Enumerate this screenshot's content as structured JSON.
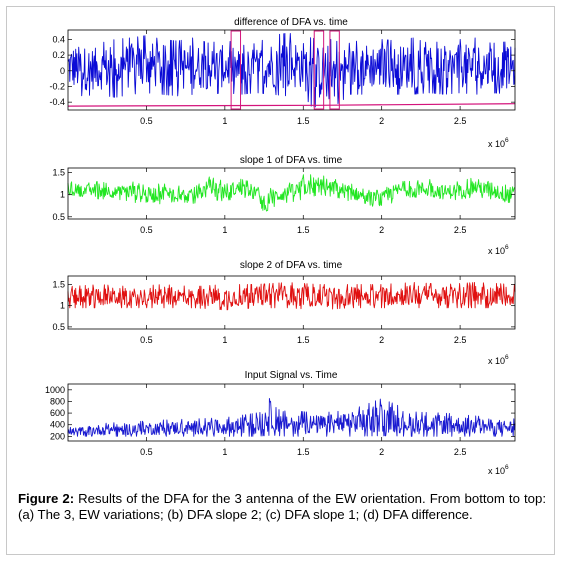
{
  "caption": {
    "label": "Figure 2:",
    "text": " Results of the DFA for the 3 antenna of the EW orientation. From bottom to top: (a) The 3, EW variations; (b) DFA slope 2; (c) DFA slope 1; (d) DFA difference."
  },
  "chart_data": [
    {
      "type": "line",
      "title": "difference of DFA vs. time",
      "xlim": [
        0,
        2.85
      ],
      "x_ticks": [
        0.5,
        1,
        1.5,
        2,
        2.5
      ],
      "x_tick_labels": [
        "0.5",
        "1",
        "1.5",
        "2",
        "2.5"
      ],
      "x_scale_label": "x 10",
      "x_scale_exp": "6",
      "ylim": [
        -0.5,
        0.52
      ],
      "y_ticks": [
        0.4,
        0.2,
        0,
        -0.2,
        -0.4
      ],
      "y_tick_labels": [
        "0.4",
        "0.2",
        "0",
        "-0.2",
        "-0.4"
      ],
      "series": [
        {
          "color": "#0b0bd6",
          "envelope": [
            [
              0,
              -0.3,
              0.4
            ],
            [
              0.1,
              -0.32,
              0.38
            ],
            [
              0.2,
              -0.3,
              0.35
            ],
            [
              0.3,
              -0.34,
              0.4
            ],
            [
              0.4,
              -0.3,
              0.42
            ],
            [
              0.5,
              -0.28,
              0.45
            ],
            [
              0.6,
              -0.3,
              0.4
            ],
            [
              0.7,
              -0.32,
              0.38
            ],
            [
              0.8,
              -0.3,
              0.42
            ],
            [
              0.9,
              -0.3,
              0.35
            ],
            [
              1.0,
              -0.28,
              0.4
            ],
            [
              1.1,
              -0.3,
              0.32
            ],
            [
              1.2,
              -0.28,
              0.35
            ],
            [
              1.3,
              -0.3,
              0.45
            ],
            [
              1.4,
              -0.32,
              0.48
            ],
            [
              1.5,
              -0.3,
              0.45
            ],
            [
              1.55,
              -0.45,
              0.42
            ],
            [
              1.6,
              -0.47,
              0.4
            ],
            [
              1.65,
              -0.32,
              0.42
            ],
            [
              1.7,
              -0.45,
              0.38
            ],
            [
              1.8,
              -0.3,
              0.35
            ],
            [
              1.9,
              -0.3,
              0.42
            ],
            [
              2.0,
              -0.28,
              0.4
            ],
            [
              2.1,
              -0.3,
              0.38
            ],
            [
              2.2,
              -0.3,
              0.42
            ],
            [
              2.3,
              -0.28,
              0.35
            ],
            [
              2.4,
              -0.3,
              0.38
            ],
            [
              2.5,
              -0.28,
              0.4
            ],
            [
              2.6,
              -0.3,
              0.42
            ],
            [
              2.7,
              -0.28,
              0.35
            ],
            [
              2.85,
              -0.3,
              0.38
            ]
          ]
        },
        {
          "color": "#d4147c",
          "points": [
            [
              0,
              -0.45
            ],
            [
              1.6,
              -0.44
            ],
            [
              2.85,
              -0.42
            ]
          ]
        }
      ],
      "markers": [
        {
          "x0": 1.04,
          "x1": 1.1,
          "color": "#d4147c"
        },
        {
          "x0": 1.57,
          "x1": 1.63,
          "color": "#d4147c"
        },
        {
          "x0": 1.67,
          "x1": 1.73,
          "color": "#d4147c"
        }
      ]
    },
    {
      "type": "line",
      "title": "slope 1 of DFA vs. time",
      "xlim": [
        0,
        2.85
      ],
      "x_ticks": [
        0.5,
        1,
        1.5,
        2,
        2.5
      ],
      "x_tick_labels": [
        "0.5",
        "1",
        "1.5",
        "2",
        "2.5"
      ],
      "x_scale_label": "x 10",
      "x_scale_exp": "6",
      "ylim": [
        0.45,
        1.6
      ],
      "y_ticks": [
        1.5,
        1,
        0.5
      ],
      "y_tick_labels": [
        "1.5",
        "1",
        "0.5"
      ],
      "series": [
        {
          "color": "#22e622",
          "envelope": [
            [
              0,
              1.0,
              1.3
            ],
            [
              0.1,
              0.95,
              1.25
            ],
            [
              0.2,
              0.9,
              1.3
            ],
            [
              0.3,
              0.9,
              1.2
            ],
            [
              0.4,
              0.85,
              1.3
            ],
            [
              0.5,
              0.75,
              1.2
            ],
            [
              0.6,
              0.8,
              1.25
            ],
            [
              0.7,
              0.85,
              1.2
            ],
            [
              0.8,
              0.8,
              1.15
            ],
            [
              0.9,
              0.9,
              1.4
            ],
            [
              1.0,
              0.85,
              1.3
            ],
            [
              1.1,
              0.95,
              1.35
            ],
            [
              1.2,
              0.9,
              1.25
            ],
            [
              1.25,
              0.6,
              1.1
            ],
            [
              1.35,
              0.8,
              1.2
            ],
            [
              1.45,
              0.85,
              1.3
            ],
            [
              1.5,
              0.9,
              1.45
            ],
            [
              1.6,
              1.0,
              1.45
            ],
            [
              1.7,
              0.95,
              1.35
            ],
            [
              1.8,
              0.85,
              1.25
            ],
            [
              1.9,
              0.8,
              1.1
            ],
            [
              2.0,
              0.65,
              1.1
            ],
            [
              2.1,
              0.9,
              1.3
            ],
            [
              2.2,
              0.95,
              1.3
            ],
            [
              2.3,
              0.9,
              1.35
            ],
            [
              2.4,
              0.85,
              1.25
            ],
            [
              2.5,
              0.9,
              1.3
            ],
            [
              2.6,
              0.95,
              1.4
            ],
            [
              2.7,
              0.9,
              1.35
            ],
            [
              2.8,
              0.75,
              1.2
            ],
            [
              2.85,
              0.8,
              1.25
            ]
          ]
        }
      ]
    },
    {
      "type": "line",
      "title": "slope 2 of DFA vs. time",
      "xlim": [
        0,
        2.85
      ],
      "x_ticks": [
        0.5,
        1,
        1.5,
        2,
        2.5
      ],
      "x_tick_labels": [
        "0.5",
        "1",
        "1.5",
        "2",
        "2.5"
      ],
      "x_scale_label": "x 10",
      "x_scale_exp": "6",
      "ylim": [
        0.45,
        1.7
      ],
      "y_ticks": [
        1.5,
        1,
        0.5
      ],
      "y_tick_labels": [
        "1.5",
        "1",
        "0.5"
      ],
      "series": [
        {
          "color": "#e01010",
          "envelope": [
            [
              0,
              0.95,
              1.45
            ],
            [
              0.2,
              0.95,
              1.5
            ],
            [
              0.4,
              0.95,
              1.45
            ],
            [
              0.6,
              0.95,
              1.5
            ],
            [
              0.8,
              0.95,
              1.45
            ],
            [
              1.0,
              0.9,
              1.5
            ],
            [
              1.2,
              0.95,
              1.5
            ],
            [
              1.4,
              0.95,
              1.55
            ],
            [
              1.6,
              0.9,
              1.5
            ],
            [
              1.8,
              0.95,
              1.5
            ],
            [
              2.0,
              0.95,
              1.5
            ],
            [
              2.2,
              0.95,
              1.55
            ],
            [
              2.4,
              0.95,
              1.5
            ],
            [
              2.6,
              0.95,
              1.55
            ],
            [
              2.85,
              0.95,
              1.5
            ]
          ]
        }
      ]
    },
    {
      "type": "line",
      "title": "Input Signal vs. Time",
      "xlim": [
        0,
        2.85
      ],
      "x_ticks": [
        0.5,
        1,
        1.5,
        2,
        2.5
      ],
      "x_tick_labels": [
        "0.5",
        "1",
        "1.5",
        "2",
        "2.5"
      ],
      "x_scale_label": "x 10",
      "x_scale_exp": "6",
      "ylim": [
        120,
        1100
      ],
      "y_ticks": [
        1000,
        800,
        600,
        400,
        200
      ],
      "y_tick_labels": [
        "1000",
        "800",
        "600",
        "400",
        "200"
      ],
      "series": [
        {
          "color": "#1a1ad0",
          "envelope": [
            [
              0,
              200,
              350
            ],
            [
              0.2,
              200,
              420
            ],
            [
              0.4,
              200,
              450
            ],
            [
              0.6,
              200,
              480
            ],
            [
              0.8,
              200,
              500
            ],
            [
              1.0,
              200,
              520
            ],
            [
              1.2,
              200,
              600
            ],
            [
              1.3,
              220,
              900
            ],
            [
              1.4,
              200,
              650
            ],
            [
              1.6,
              200,
              600
            ],
            [
              1.8,
              200,
              650
            ],
            [
              2.0,
              210,
              850
            ],
            [
              2.2,
              200,
              620
            ],
            [
              2.4,
              200,
              600
            ],
            [
              2.6,
              200,
              550
            ],
            [
              2.85,
              200,
              500
            ]
          ]
        }
      ]
    }
  ]
}
